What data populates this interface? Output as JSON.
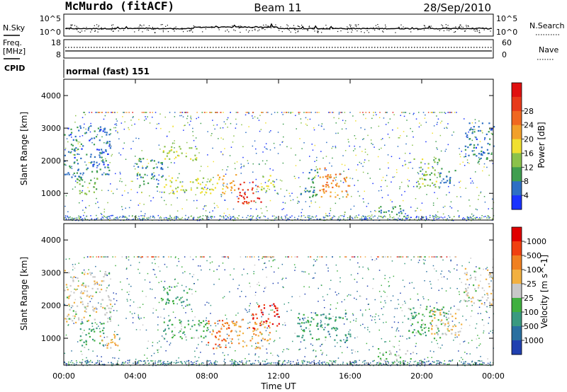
{
  "header": {
    "station": "McMurdo (fitACF)",
    "beam": "Beam 11",
    "date": "28/Sep/2010"
  },
  "panels": {
    "nsky": {
      "left_label": "N.Sky",
      "right_label": "N.Search",
      "left_ticks": [
        "10^5",
        "10^0"
      ],
      "right_ticks": [
        "10^5",
        "10^0"
      ]
    },
    "freq": {
      "left_label_1": "Freq.",
      "left_label_2": "[MHz]",
      "left_ticks": [
        "18",
        "8"
      ],
      "right_label": "Nave",
      "right_ticks": [
        "60",
        "0"
      ]
    },
    "cpid": {
      "label": "CPID",
      "text": "normal (fast) 151"
    }
  },
  "chart_data": [
    {
      "type": "heatmap",
      "title": "Power",
      "ylabel": "Slant Range [km]",
      "xlabel": "Time UT",
      "ylim": [
        180,
        4500
      ],
      "yticks": [
        1000,
        2000,
        3000,
        4000
      ],
      "xticks": [
        "00:00",
        "04:00",
        "08:00",
        "12:00",
        "16:00",
        "20:00",
        "00:00"
      ],
      "colorbar": {
        "label": "Power [dB]",
        "ticks": [
          "4",
          "8",
          "12",
          "16",
          "20",
          "24",
          "28"
        ],
        "colors": [
          "#1a33ff",
          "#2d6fc4",
          "#3f9e4f",
          "#8bc24a",
          "#f0e030",
          "#f2a02a",
          "#f06820",
          "#e83a1a",
          "#e01010"
        ]
      },
      "regions": [
        {
          "t0": 0.0,
          "t1": 2.6,
          "r0": 1500,
          "r1": 3100,
          "value": 6
        },
        {
          "t0": 0.7,
          "t1": 2.0,
          "r0": 900,
          "r1": 1500,
          "value": 12
        },
        {
          "t0": 4.0,
          "t1": 5.5,
          "r0": 1200,
          "r1": 2100,
          "value": 7
        },
        {
          "t0": 5.5,
          "t1": 7.4,
          "r0": 2000,
          "r1": 2500,
          "value": 14
        },
        {
          "t0": 5.5,
          "t1": 8.5,
          "r0": 1000,
          "r1": 1500,
          "value": 14
        },
        {
          "t0": 8.5,
          "t1": 9.6,
          "r0": 1000,
          "r1": 1600,
          "value": 20
        },
        {
          "t0": 9.6,
          "t1": 11.0,
          "r0": 700,
          "r1": 1400,
          "value": 28
        },
        {
          "t0": 11.0,
          "t1": 11.8,
          "r0": 1000,
          "r1": 1600,
          "value": 14
        },
        {
          "t0": 13.2,
          "t1": 14.2,
          "r0": 900,
          "r1": 1800,
          "value": 8
        },
        {
          "t0": 14.2,
          "t1": 16.0,
          "r0": 900,
          "r1": 1800,
          "value": 22
        },
        {
          "t0": 17.5,
          "t1": 19.0,
          "r0": 250,
          "r1": 650,
          "value": 8
        },
        {
          "t0": 19.5,
          "t1": 21.0,
          "r0": 1200,
          "r1": 2100,
          "value": 12
        },
        {
          "t0": 21.0,
          "t1": 22.0,
          "r0": 1300,
          "r1": 1800,
          "value": 7
        },
        {
          "t0": 22.3,
          "t1": 24.0,
          "r0": 2000,
          "r1": 3200,
          "value": 6
        }
      ]
    },
    {
      "type": "heatmap",
      "title": "Velocity",
      "ylabel": "Slant Range [km]",
      "xlabel": "Time UT",
      "ylim": [
        180,
        4500
      ],
      "yticks": [
        1000,
        2000,
        3000,
        4000
      ],
      "xticks": [
        "00:00",
        "04:00",
        "08:00",
        "12:00",
        "16:00",
        "20:00",
        "00:00"
      ],
      "colorbar": {
        "label": "Velocity [m s^-1]",
        "ticks": [
          "1000",
          "500",
          "100",
          "25",
          "-25",
          "-100",
          "-500",
          "-1000"
        ],
        "colors": [
          "#2040b0",
          "#2a70a0",
          "#3a9a80",
          "#40b040",
          "#c8c8c8",
          "#f2b040",
          "#f08020",
          "#f04010",
          "#e00000"
        ]
      },
      "regions": [
        {
          "t0": 0.0,
          "t1": 2.6,
          "r0": 1500,
          "r1": 3100,
          "value": 50
        },
        {
          "t0": 0.8,
          "t1": 2.2,
          "r0": 800,
          "r1": 1500,
          "value": -400
        },
        {
          "t0": 2.0,
          "t1": 3.0,
          "r0": 700,
          "r1": 1200,
          "value": 300
        },
        {
          "t0": 5.3,
          "t1": 7.0,
          "r0": 2000,
          "r1": 2600,
          "value": -400
        },
        {
          "t0": 5.5,
          "t1": 8.0,
          "r0": 1000,
          "r1": 1600,
          "value": -300
        },
        {
          "t0": 8.0,
          "t1": 9.5,
          "r0": 700,
          "r1": 1600,
          "value": 600
        },
        {
          "t0": 9.5,
          "t1": 11.5,
          "r0": 700,
          "r1": 1600,
          "value": 300
        },
        {
          "t0": 10.5,
          "t1": 12.0,
          "r0": 1300,
          "r1": 2100,
          "value": 1000
        },
        {
          "t0": 13.0,
          "t1": 16.0,
          "r0": 900,
          "r1": 1800,
          "value": -500
        },
        {
          "t0": 17.5,
          "t1": 19.5,
          "r0": 250,
          "r1": 700,
          "value": -150
        },
        {
          "t0": 19.2,
          "t1": 21.5,
          "r0": 1000,
          "r1": 2000,
          "value": -300
        },
        {
          "t0": 20.5,
          "t1": 22.2,
          "r0": 1100,
          "r1": 1900,
          "value": 150
        },
        {
          "t0": 22.3,
          "t1": 24.0,
          "r0": 2000,
          "r1": 3200,
          "value": 0
        }
      ]
    }
  ]
}
